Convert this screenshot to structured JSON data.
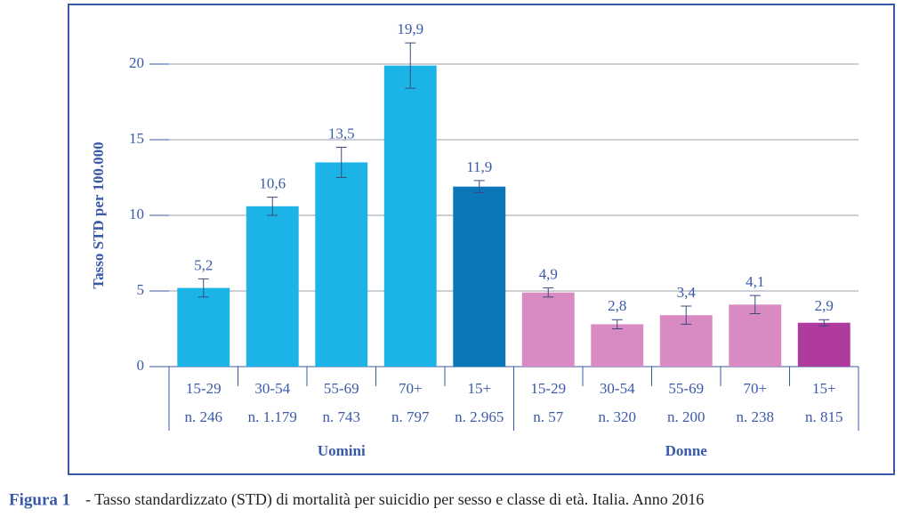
{
  "chart_data": {
    "type": "bar",
    "y_label": "Tasso STD per 100.000",
    "categories": [
      "15-29",
      "30-54",
      "55-69",
      "70+",
      "15+",
      "15-29",
      "30-54",
      "55-69",
      "70+",
      "15+"
    ],
    "counts": [
      "n. 246",
      "n. 1.179",
      "n. 743",
      "n. 797",
      "n. 2.965",
      "n. 57",
      "n. 320",
      "n. 200",
      "n. 238",
      "n. 815"
    ],
    "groups": [
      "Uomini",
      "Donne"
    ],
    "values": [
      5.2,
      10.6,
      13.5,
      19.9,
      11.9,
      4.9,
      2.8,
      3.4,
      4.1,
      2.9
    ],
    "value_labels": [
      "5,2",
      "10,6",
      "13,5",
      "19,9",
      "11,9",
      "4,9",
      "2,8",
      "3,4",
      "4,1",
      "2,9"
    ],
    "errors": [
      0.6,
      0.6,
      1.0,
      1.5,
      0.4,
      0.3,
      0.3,
      0.6,
      0.6,
      0.2
    ],
    "colors": [
      "#1cb3e6",
      "#1cb3e6",
      "#1cb3e6",
      "#1cb3e6",
      "#0b77b9",
      "#d98ac3",
      "#d98ac3",
      "#d98ac3",
      "#d98ac3",
      "#ae3a9d"
    ],
    "ylim": [
      0,
      20
    ],
    "yticks": [
      0,
      5,
      10,
      15,
      20
    ],
    "grid": true
  },
  "caption_label": "Figura 1",
  "caption": "- Tasso standardizzato (STD) di mortalità per suicidio per sesso e classe di età. Italia. Anno 2016"
}
